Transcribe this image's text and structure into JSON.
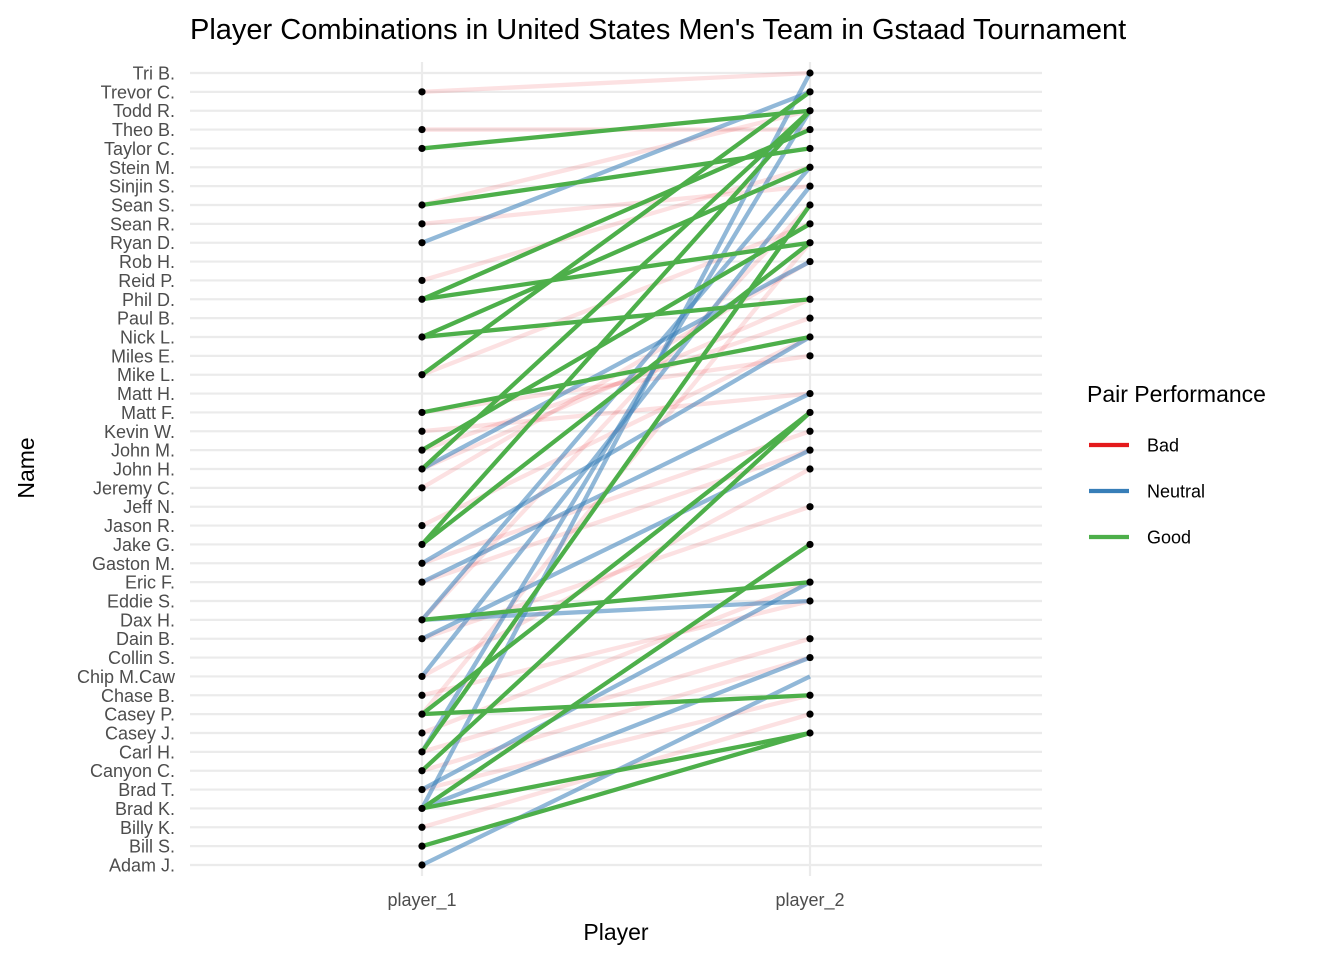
{
  "chart_data": {
    "type": "line",
    "title": "Player Combinations in United States Men's Team in Gstaad Tournament",
    "xlabel": "Player",
    "ylabel": "Name",
    "categories": [
      "player_1",
      "player_2"
    ],
    "y_categories": [
      "Adam J.",
      "Bill S.",
      "Billy K.",
      "Brad K.",
      "Brad T.",
      "Canyon C.",
      "Carl H.",
      "Casey J.",
      "Casey P.",
      "Chase B.",
      "Chip M.Caw",
      "Collin S.",
      "Dain B.",
      "Dax H.",
      "Eddie S.",
      "Eric F.",
      "Gaston M.",
      "Jake G.",
      "Jason R.",
      "Jeff N.",
      "Jeremy C.",
      "John H.",
      "John M.",
      "Kevin W.",
      "Matt F.",
      "Matt H.",
      "Mike L.",
      "Miles E.",
      "Nick L.",
      "Paul B.",
      "Phil D.",
      "Reid P.",
      "Rob H.",
      "Ryan D.",
      "Sean R.",
      "Sean S.",
      "Sinjin S.",
      "Stein M.",
      "Taylor C.",
      "Theo B.",
      "Todd R.",
      "Trevor C.",
      "Tri B."
    ],
    "legend": {
      "title": "Pair Performance",
      "position": "right",
      "entries": [
        {
          "label": "Bad",
          "color": "#e41a1c"
        },
        {
          "label": "Neutral",
          "color": "#377eb8"
        },
        {
          "label": "Good",
          "color": "#4daf4a"
        }
      ]
    },
    "player_1_points": [
      "Adam J.",
      "Bill S.",
      "Billy K.",
      "Brad K.",
      "Brad T.",
      "Canyon C.",
      "Carl H.",
      "Casey J.",
      "Casey P.",
      "Chase B.",
      "Chip M.Caw",
      "Dain B.",
      "Dax H.",
      "Eric F.",
      "Gaston M.",
      "Jake G.",
      "Jason R.",
      "Jeremy C.",
      "John H.",
      "John M.",
      "Kevin W.",
      "Matt F.",
      "Mike L.",
      "Nick L.",
      "Phil D.",
      "Reid P.",
      "Ryan D.",
      "Sean R.",
      "Sean S.",
      "Taylor C.",
      "Theo B.",
      "Trevor C."
    ],
    "player_2_points": [
      "Casey J.",
      "Casey P.",
      "Chase B.",
      "Collin S.",
      "Dain B.",
      "Eddie S.",
      "Eric F.",
      "Jake G.",
      "Jeff N.",
      "John H.",
      "John M.",
      "Kevin W.",
      "Matt F.",
      "Matt H.",
      "Miles E.",
      "Nick L.",
      "Paul B.",
      "Phil D.",
      "Rob H.",
      "Ryan D.",
      "Sean R.",
      "Sean S.",
      "Sinjin S.",
      "Stein M.",
      "Taylor C.",
      "Theo B.",
      "Todd R.",
      "Trevor C.",
      "Tri B."
    ],
    "pairs": [
      {
        "player_1": "Trevor C.",
        "player_2": "Tri B.",
        "performance": "Bad"
      },
      {
        "player_1": "Theo B.",
        "player_2": "Theo B.",
        "performance": "Bad"
      },
      {
        "player_1": "Sean R.",
        "player_2": "Sinjin S.",
        "performance": "Bad"
      },
      {
        "player_1": "Reid P.",
        "player_2": "Stein M.",
        "performance": "Bad"
      },
      {
        "player_1": "Mike L.",
        "player_2": "Sean R.",
        "performance": "Bad"
      },
      {
        "player_1": "Jeremy C.",
        "player_2": "Rob H.",
        "performance": "Bad"
      },
      {
        "player_1": "Jason R.",
        "player_2": "Nick L.",
        "performance": "Bad"
      },
      {
        "player_1": "John H.",
        "player_2": "Phil D.",
        "performance": "Bad"
      },
      {
        "player_1": "Kevin W.",
        "player_2": "Matt H.",
        "performance": "Bad"
      },
      {
        "player_1": "John M.",
        "player_2": "Paul B.",
        "performance": "Bad"
      },
      {
        "player_1": "Matt F.",
        "player_2": "Miles E.",
        "performance": "Bad"
      },
      {
        "player_1": "Gaston M.",
        "player_2": "Kevin W.",
        "performance": "Bad"
      },
      {
        "player_1": "Eric F.",
        "player_2": "John M.",
        "performance": "Bad"
      },
      {
        "player_1": "Dain B.",
        "player_2": "Jeff N.",
        "performance": "Bad"
      },
      {
        "player_1": "Chip M.Caw",
        "player_2": "John H.",
        "performance": "Bad"
      },
      {
        "player_1": "Chase B.",
        "player_2": "Eddie S.",
        "performance": "Bad"
      },
      {
        "player_1": "Casey J.",
        "player_2": "Eric F.",
        "performance": "Bad"
      },
      {
        "player_1": "Carl H.",
        "player_2": "Dain B.",
        "performance": "Bad"
      },
      {
        "player_1": "Canyon C.",
        "player_2": "Collin S.",
        "performance": "Bad"
      },
      {
        "player_1": "Brad T.",
        "player_2": "Chase B.",
        "performance": "Bad"
      },
      {
        "player_1": "Billy K.",
        "player_2": "Casey P.",
        "performance": "Bad"
      },
      {
        "player_1": "Dax H.",
        "player_2": "Sean S.",
        "performance": "Bad"
      },
      {
        "player_1": "Sean S.",
        "player_2": "Todd R.",
        "performance": "Bad"
      },
      {
        "player_1": "Casey P.",
        "player_2": "Ryan D.",
        "performance": "Bad"
      },
      {
        "player_1": "Ryan D.",
        "player_2": "Trevor C.",
        "performance": "Neutral"
      },
      {
        "player_1": "Adam J.",
        "player_2": "Chip M.Caw",
        "performance": "Neutral"
      },
      {
        "player_1": "Brad K.",
        "player_2": "Tri B.",
        "performance": "Neutral"
      },
      {
        "player_1": "Carl H.",
        "player_2": "Todd R.",
        "performance": "Neutral"
      },
      {
        "player_1": "Chip M.Caw",
        "player_2": "Sinjin S.",
        "performance": "Neutral"
      },
      {
        "player_1": "Dax H.",
        "player_2": "Stein M.",
        "performance": "Neutral"
      },
      {
        "player_1": "Dain B.",
        "player_2": "John M.",
        "performance": "Neutral"
      },
      {
        "player_1": "John H.",
        "player_2": "Rob H.",
        "performance": "Neutral"
      },
      {
        "player_1": "Eric F.",
        "player_2": "Matt H.",
        "performance": "Neutral"
      },
      {
        "player_1": "Gaston M.",
        "player_2": "Nick L.",
        "performance": "Neutral"
      },
      {
        "player_1": "Brad T.",
        "player_2": "Eric F.",
        "performance": "Neutral"
      },
      {
        "player_1": "Dax H.",
        "player_2": "Eddie S.",
        "performance": "Neutral"
      },
      {
        "player_1": "Brad K.",
        "player_2": "Collin S.",
        "performance": "Neutral"
      },
      {
        "player_1": "Taylor C.",
        "player_2": "Todd R.",
        "performance": "Good"
      },
      {
        "player_1": "Sean S.",
        "player_2": "Taylor C.",
        "performance": "Good"
      },
      {
        "player_1": "Phil D.",
        "player_2": "Ryan D.",
        "performance": "Good"
      },
      {
        "player_1": "Phil D.",
        "player_2": "Theo B.",
        "performance": "Good"
      },
      {
        "player_1": "Nick L.",
        "player_2": "Phil D.",
        "performance": "Good"
      },
      {
        "player_1": "Nick L.",
        "player_2": "Stein M.",
        "performance": "Good"
      },
      {
        "player_1": "Mike L.",
        "player_2": "Trevor C.",
        "performance": "Good"
      },
      {
        "player_1": "Matt F.",
        "player_2": "Nick L.",
        "performance": "Good"
      },
      {
        "player_1": "John M.",
        "player_2": "Sean R.",
        "performance": "Good"
      },
      {
        "player_1": "John H.",
        "player_2": "Todd R.",
        "performance": "Good"
      },
      {
        "player_1": "Jake G.",
        "player_2": "Todd R.",
        "performance": "Good"
      },
      {
        "player_1": "Jake G.",
        "player_2": "Ryan D.",
        "performance": "Good"
      },
      {
        "player_1": "Dax H.",
        "player_2": "Eric F.",
        "performance": "Good"
      },
      {
        "player_1": "Casey P.",
        "player_2": "Chase B.",
        "performance": "Good"
      },
      {
        "player_1": "Casey P.",
        "player_2": "Matt F.",
        "performance": "Good"
      },
      {
        "player_1": "Canyon C.",
        "player_2": "Matt F.",
        "performance": "Good"
      },
      {
        "player_1": "Carl H.",
        "player_2": "Sean S.",
        "performance": "Good"
      },
      {
        "player_1": "Brad K.",
        "player_2": "Jake G.",
        "performance": "Good"
      },
      {
        "player_1": "Brad K.",
        "player_2": "Casey J.",
        "performance": "Good"
      },
      {
        "player_1": "Bill S.",
        "player_2": "Casey J.",
        "performance": "Good"
      }
    ]
  }
}
